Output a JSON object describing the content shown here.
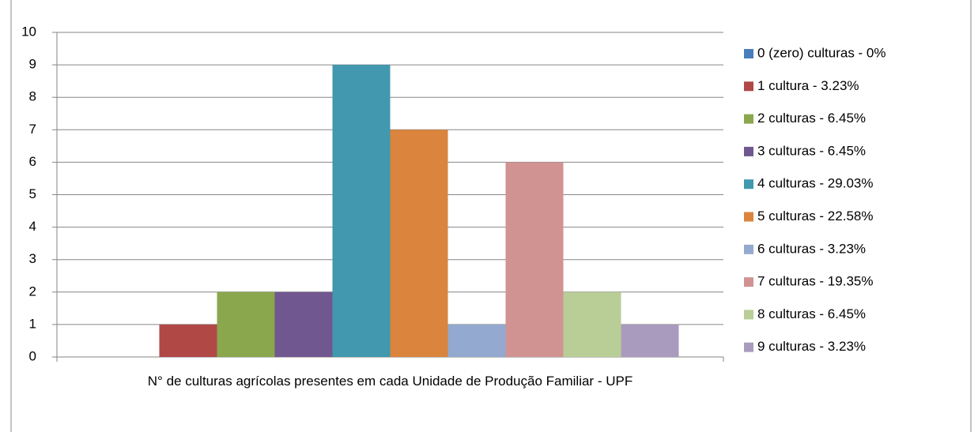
{
  "chart_data": {
    "type": "bar",
    "categories": [
      "N° de culturas agrícolas presentes em cada Unidade de Produção Familiar - UPF"
    ],
    "series": [
      {
        "name": "0 (zero) culturas - 0%",
        "color": "#4a7ebb",
        "values": [
          0
        ]
      },
      {
        "name": "1 cultura - 3.23%",
        "color": "#b04846",
        "values": [
          1
        ]
      },
      {
        "name": "2 culturas - 6.45%",
        "color": "#8aa74e",
        "values": [
          2
        ]
      },
      {
        "name": "3 culturas - 6.45%",
        "color": "#71578f",
        "values": [
          2
        ]
      },
      {
        "name": "4 culturas - 29.03%",
        "color": "#4198af",
        "values": [
          9
        ]
      },
      {
        "name": "5 culturas - 22.58%",
        "color": "#db843d",
        "values": [
          7
        ]
      },
      {
        "name": "6 culturas - 3.23%",
        "color": "#93a9cf",
        "values": [
          1
        ]
      },
      {
        "name": "7 culturas - 19.35%",
        "color": "#d19392",
        "values": [
          6
        ]
      },
      {
        "name": "8 culturas - 6.45%",
        "color": "#b9cd96",
        "values": [
          2
        ]
      },
      {
        "name": "9 culturas - 3.23%",
        "color": "#a99bbd",
        "values": [
          1
        ]
      }
    ],
    "ylim": [
      0,
      10
    ],
    "yticks": [
      0,
      1,
      2,
      3,
      4,
      5,
      6,
      7,
      8,
      9,
      10
    ],
    "grid": true,
    "legend": "right"
  }
}
